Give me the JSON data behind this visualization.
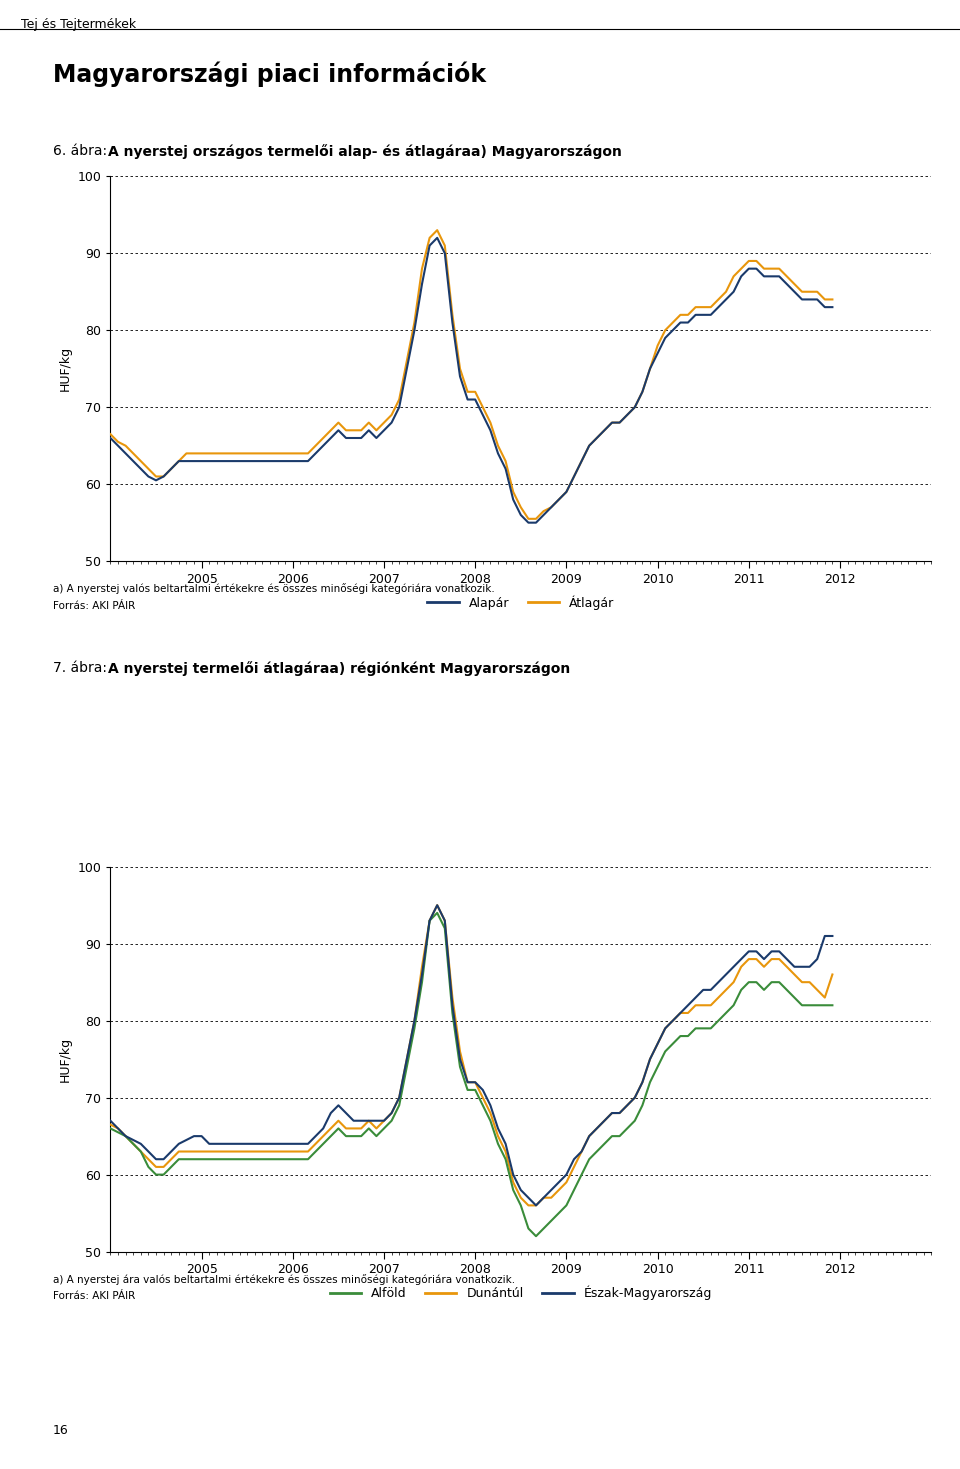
{
  "page_header": "Tej és Tejtermékek",
  "main_title": "Magyarországi piaci információk",
  "chart1_title_normal": "6. ábra: ",
  "chart1_title_bold": "A nyerstej országos termelői alap- és átlagára",
  "chart1_title_super": "a)",
  "chart1_title_end": " Magyarországon",
  "chart2_title_normal": "7. ábra: ",
  "chart2_title_bold": "A nyerstej termelői átlagára",
  "chart2_title_super": "a)",
  "chart2_title_end": " régiónként Magyarországon",
  "ylabel": "HUF/kg",
  "ylim": [
    50,
    100
  ],
  "yticks": [
    50,
    60,
    70,
    80,
    90,
    100
  ],
  "footnote1a": "a) A nyerstej valós beltartalmi értékekre és összes minőségi kategóriára vonatkozik.",
  "footnote1b": "Forrás: AKI PÁIR",
  "footnote2a": "a) A nyerstej ára valós beltartalmi értékekre és összes minőségi kategóriára vonatkozik.",
  "footnote2b": "Forrás: AKI PÁIR",
  "page_number": "16",
  "alapar_color": "#1a3a6b",
  "atlagár_color": "#e8960c",
  "alfold_color": "#3a8c3a",
  "dunantul_color": "#e8960c",
  "eszak_color": "#1a3a6b",
  "line_width": 1.5,
  "chart1_alapar": [
    66,
    65,
    64,
    63,
    62,
    61,
    60.5,
    61,
    62,
    63,
    63,
    63,
    63,
    63,
    63,
    63,
    63,
    63,
    63,
    63,
    63,
    63,
    63,
    63,
    63,
    63,
    63,
    64,
    65,
    66,
    67,
    66,
    66,
    66,
    67,
    66,
    67,
    68,
    70,
    75,
    80,
    86,
    91,
    92,
    90,
    81,
    74,
    71,
    71,
    69,
    67,
    64,
    62,
    58,
    56,
    55,
    55,
    56,
    57,
    58,
    59,
    61,
    63,
    65,
    66,
    67,
    68,
    68,
    69,
    70,
    72,
    75,
    77,
    79,
    80,
    81,
    81,
    82,
    82,
    82,
    83,
    84,
    85,
    87,
    88,
    88,
    87,
    87,
    87,
    86,
    85,
    84,
    84,
    84,
    83,
    83
  ],
  "chart1_atlagár": [
    66.5,
    65.5,
    65,
    64,
    63,
    62,
    61,
    61,
    62,
    63,
    64,
    64,
    64,
    64,
    64,
    64,
    64,
    64,
    64,
    64,
    64,
    64,
    64,
    64,
    64,
    64,
    64,
    65,
    66,
    67,
    68,
    67,
    67,
    67,
    68,
    67,
    68,
    69,
    71,
    76,
    81,
    88,
    92,
    93,
    91,
    82,
    75,
    72,
    72,
    70,
    68,
    65,
    63,
    59,
    57,
    55.5,
    55.5,
    56.5,
    57,
    58,
    59,
    61,
    63,
    65,
    66,
    67,
    68,
    68,
    69,
    70,
    72,
    75,
    78,
    80,
    81,
    82,
    82,
    83,
    83,
    83,
    84,
    85,
    87,
    88,
    89,
    89,
    88,
    88,
    88,
    87,
    86,
    85,
    85,
    85,
    84,
    84
  ],
  "chart2_alfold": [
    66,
    65.5,
    65,
    64,
    63,
    61,
    60,
    60,
    61,
    62,
    62,
    62,
    62,
    62,
    62,
    62,
    62,
    62,
    62,
    62,
    62,
    62,
    62,
    62,
    62,
    62,
    62,
    63,
    64,
    65,
    66,
    65,
    65,
    65,
    66,
    65,
    66,
    67,
    69,
    74,
    79,
    85,
    93,
    94,
    92,
    81,
    74,
    71,
    71,
    69,
    67,
    64,
    62,
    58,
    56,
    53,
    52,
    53,
    54,
    55,
    56,
    58,
    60,
    62,
    63,
    64,
    65,
    65,
    66,
    67,
    69,
    72,
    74,
    76,
    77,
    78,
    78,
    79,
    79,
    79,
    80,
    81,
    82,
    84,
    85,
    85,
    84,
    85,
    85,
    84,
    83,
    82,
    82,
    82,
    82,
    82
  ],
  "chart2_dunantul": [
    66.5,
    66,
    65,
    64,
    63,
    62,
    61,
    61,
    62,
    63,
    63,
    63,
    63,
    63,
    63,
    63,
    63,
    63,
    63,
    63,
    63,
    63,
    63,
    63,
    63,
    63,
    63,
    64,
    65,
    66,
    67,
    66,
    66,
    66,
    67,
    66,
    67,
    68,
    70,
    75,
    80,
    87,
    93,
    95,
    93,
    83,
    76,
    72,
    72,
    70,
    68,
    65,
    63,
    59,
    57,
    56,
    56,
    57,
    57,
    58,
    59,
    61,
    63,
    65,
    66,
    67,
    68,
    68,
    69,
    70,
    72,
    75,
    77,
    79,
    80,
    81,
    81,
    82,
    82,
    82,
    83,
    84,
    85,
    87,
    88,
    88,
    87,
    88,
    88,
    87,
    86,
    85,
    85,
    84,
    83,
    86
  ],
  "chart2_eszak": [
    67,
    66,
    65,
    64.5,
    64,
    63,
    62,
    62,
    63,
    64,
    64.5,
    65,
    65,
    64,
    64,
    64,
    64,
    64,
    64,
    64,
    64,
    64,
    64,
    64,
    64,
    64,
    64,
    65,
    66,
    68,
    69,
    68,
    67,
    67,
    67,
    67,
    67,
    68,
    70,
    75,
    80,
    86,
    93,
    95,
    93,
    82,
    75,
    72,
    72,
    71,
    69,
    66,
    64,
    60,
    58,
    57,
    56,
    57,
    58,
    59,
    60,
    62,
    63,
    65,
    66,
    67,
    68,
    68,
    69,
    70,
    72,
    75,
    77,
    79,
    80,
    81,
    82,
    83,
    84,
    84,
    85,
    86,
    87,
    88,
    89,
    89,
    88,
    89,
    89,
    88,
    87,
    87,
    87,
    88,
    91,
    91
  ]
}
